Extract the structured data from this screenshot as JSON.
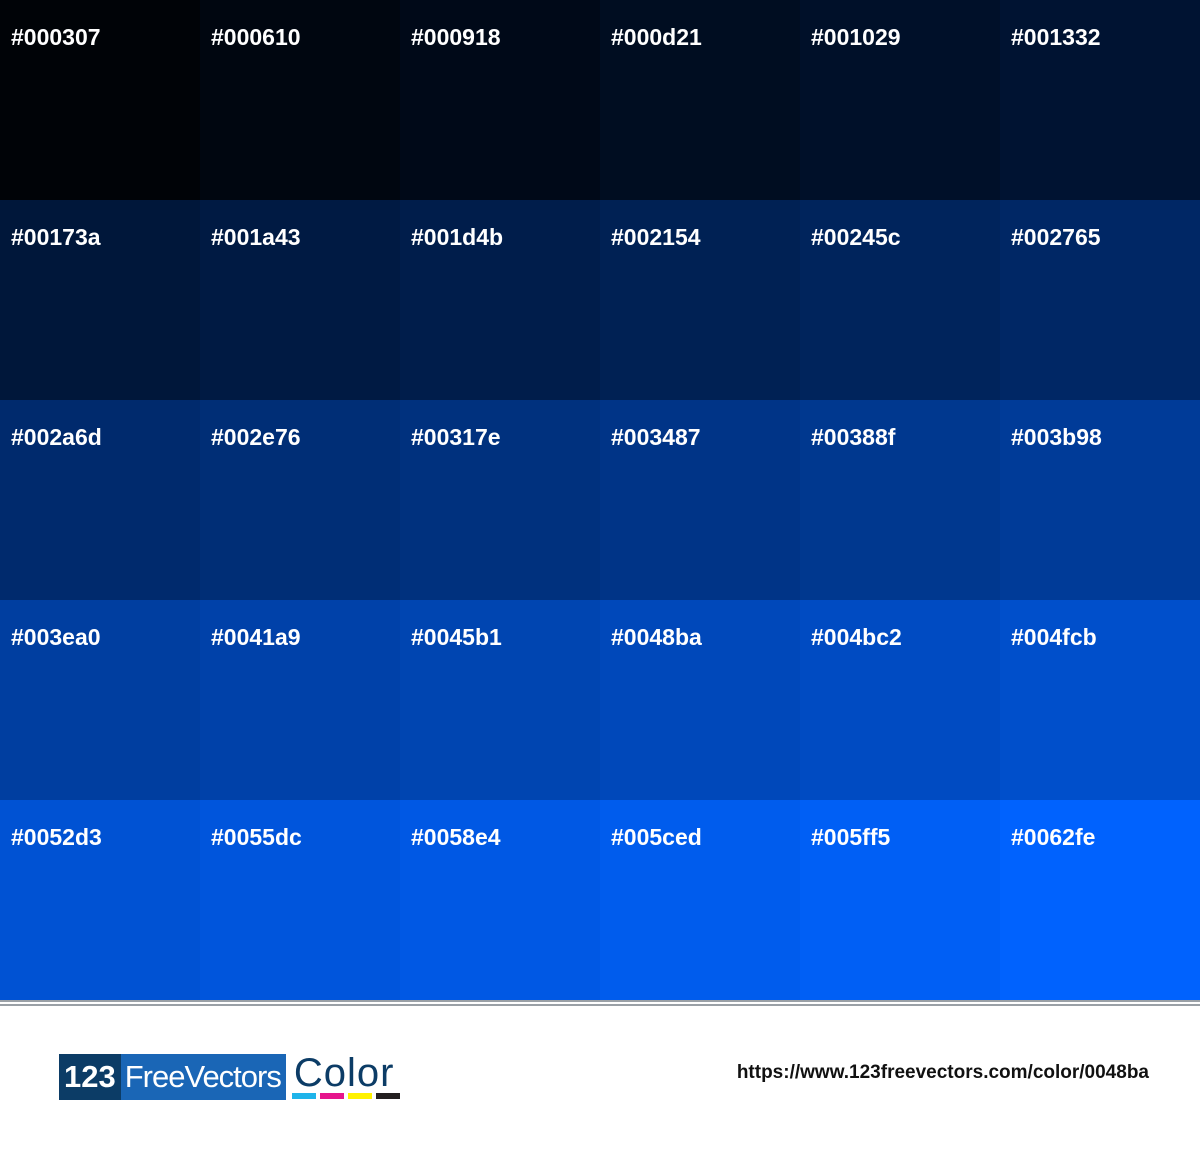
{
  "swatches": [
    "#000307",
    "#000610",
    "#000918",
    "#000d21",
    "#001029",
    "#001332",
    "#00173a",
    "#001a43",
    "#001d4b",
    "#002154",
    "#00245c",
    "#002765",
    "#002a6d",
    "#002e76",
    "#00317e",
    "#003487",
    "#00388f",
    "#003b98",
    "#003ea0",
    "#0041a9",
    "#0045b1",
    "#0048ba",
    "#004bc2",
    "#004fcb",
    "#0052d3",
    "#0055dc",
    "#0058e4",
    "#005ced",
    "#005ff5",
    "#0062fe"
  ],
  "footer": {
    "logo_number": "123",
    "logo_brand": "FreeVectors",
    "logo_word": "Color",
    "url": "https://www.123freevectors.com/color/0048ba"
  }
}
